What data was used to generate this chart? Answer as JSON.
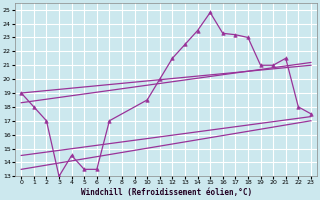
{
  "xlabel": "Windchill (Refroidissement éolien,°C)",
  "bg_color": "#cce8ee",
  "grid_color": "#ffffff",
  "line_color": "#993399",
  "xlim": [
    -0.5,
    23.5
  ],
  "ylim": [
    13,
    25.5
  ],
  "xticks": [
    0,
    1,
    2,
    3,
    4,
    5,
    6,
    7,
    8,
    9,
    10,
    11,
    12,
    13,
    14,
    15,
    16,
    17,
    18,
    19,
    20,
    21,
    22,
    23
  ],
  "yticks": [
    13,
    14,
    15,
    16,
    17,
    18,
    19,
    20,
    21,
    22,
    23,
    24,
    25
  ],
  "main_x": [
    0,
    1,
    2,
    3,
    4,
    5,
    6,
    7,
    10,
    11,
    12,
    13,
    14,
    15,
    16,
    17,
    18,
    19,
    20,
    21,
    22,
    23
  ],
  "main_y": [
    19,
    18,
    17,
    13,
    14.5,
    13.5,
    13.5,
    17,
    18.5,
    20,
    21.5,
    22.5,
    23.5,
    24.8,
    23.3,
    23.2,
    23,
    21,
    21,
    21.5,
    18,
    17.5
  ],
  "line1_x": [
    0,
    23
  ],
  "line1_y": [
    19.0,
    21.0
  ],
  "line2_x": [
    0,
    23
  ],
  "line2_y": [
    18.3,
    21.2
  ],
  "line3_x": [
    0,
    23
  ],
  "line3_y": [
    14.5,
    17.3
  ],
  "line4_x": [
    0,
    23
  ],
  "line4_y": [
    13.5,
    17.0
  ]
}
